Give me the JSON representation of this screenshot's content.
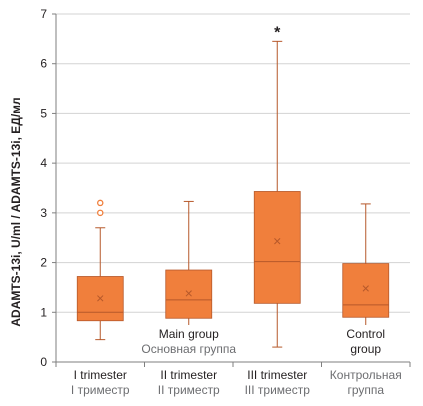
{
  "chart_data": {
    "type": "box",
    "ylabel": "ADAMTS-13i, U/ml / ADAMTS-13i, ЕД/мл",
    "ylim": [
      0,
      7
    ],
    "yticks": [
      0,
      1,
      2,
      3,
      4,
      5,
      6,
      7
    ],
    "grid": true,
    "categories": [
      {
        "label_en": "I trimester",
        "label_ru": "I триместр"
      },
      {
        "label_en": "II trimester",
        "label_ru": "II триместр"
      },
      {
        "label_en": "III trimester",
        "label_ru": "III триместр"
      },
      {
        "label_en": "",
        "label_ru": "Контрольная группа"
      }
    ],
    "boxes": [
      {
        "min": 0.45,
        "q1": 0.83,
        "median": 1.0,
        "q3": 1.72,
        "max": 2.7,
        "mean": 1.28,
        "outliers": [
          3.0,
          3.2
        ]
      },
      {
        "min": 0.45,
        "q1": 0.88,
        "median": 1.25,
        "q3": 1.85,
        "max": 3.23,
        "mean": 1.38,
        "outliers": []
      },
      {
        "min": 0.3,
        "q1": 1.18,
        "median": 2.02,
        "q3": 3.43,
        "max": 6.45,
        "mean": 2.43,
        "outliers": []
      },
      {
        "min": 0.45,
        "q1": 0.9,
        "median": 1.15,
        "q3": 1.98,
        "max": 3.18,
        "mean": 1.48,
        "outliers": []
      }
    ],
    "group_labels": [
      {
        "text": "Main group",
        "subtext": "Основная группа"
      },
      {
        "text": "Control",
        "subtext": "group"
      }
    ],
    "annotation": "*",
    "colors": {
      "box": "#f07f3c",
      "box_edge": "#b6582a",
      "axis": "#7f7f7f",
      "grid": "#d3d3d3",
      "mean_marker": "#b6582a"
    }
  }
}
